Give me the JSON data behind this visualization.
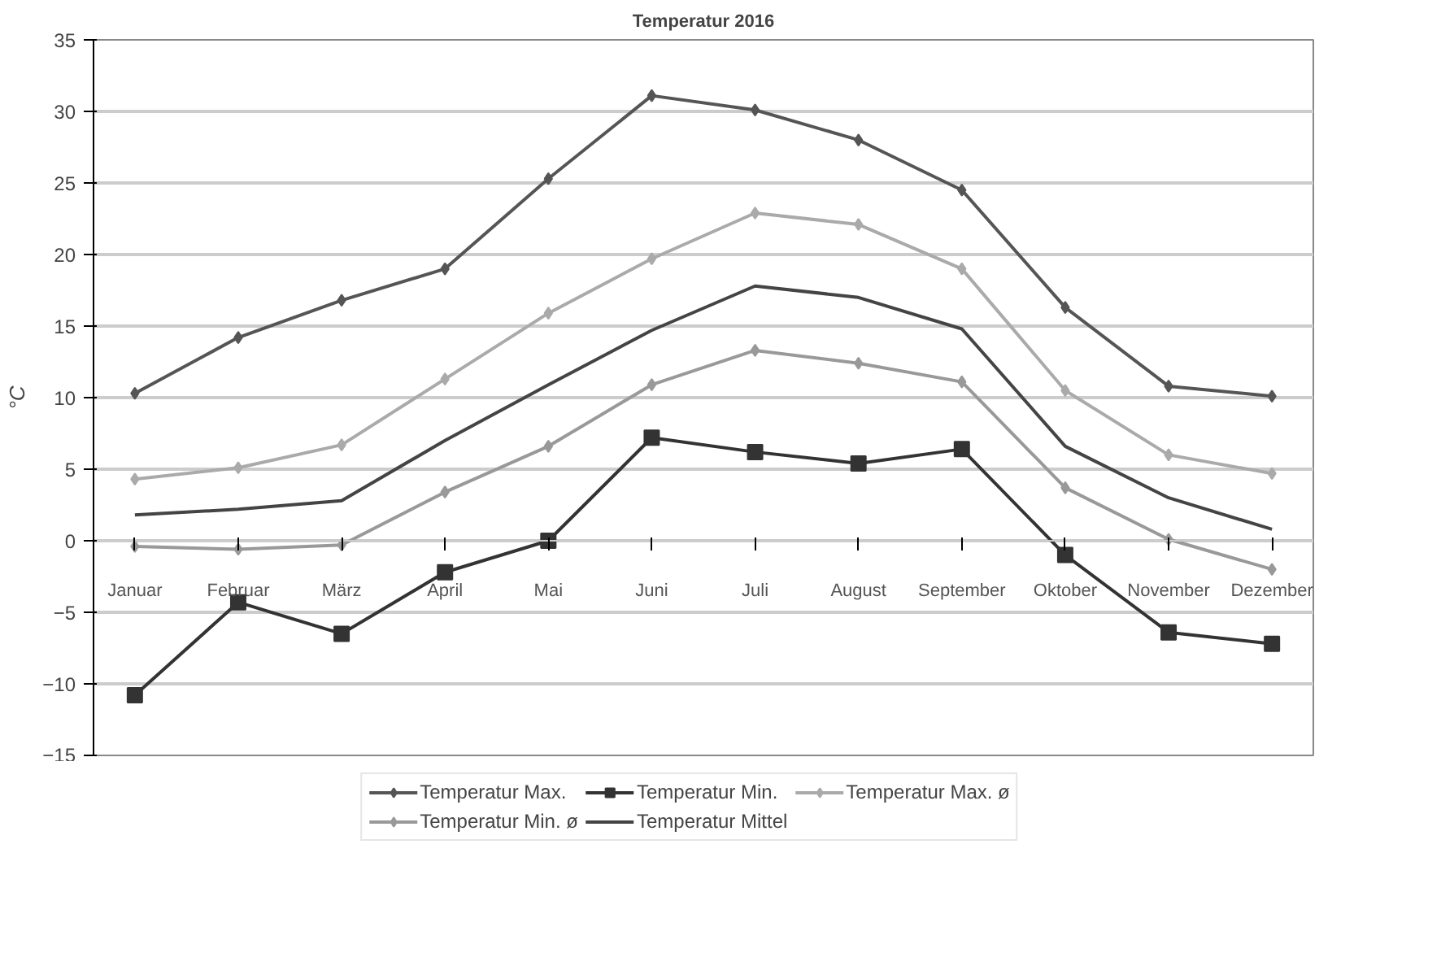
{
  "chart_data": {
    "type": "line",
    "title": "Temperatur 2016",
    "ylabel": "°C",
    "categories": [
      "Januar",
      "Februar",
      "März",
      "April",
      "Mai",
      "Juni",
      "Juli",
      "August",
      "September",
      "Oktober",
      "November",
      "Dezember"
    ],
    "ylim": [
      -15,
      35
    ],
    "yticks": [
      -15,
      -10,
      -5,
      0,
      5,
      10,
      15,
      20,
      25,
      30,
      35
    ],
    "grid": "y",
    "legend": "bottom",
    "series": [
      {
        "name": "Temperatur Max.",
        "color": "#555555",
        "marker": "diamond",
        "values": [
          10.3,
          14.2,
          16.8,
          19.0,
          25.3,
          31.1,
          30.1,
          28.0,
          24.5,
          16.3,
          10.8,
          10.1
        ]
      },
      {
        "name": "Temperatur Min.",
        "color": "#333333",
        "marker": "square",
        "values": [
          -10.8,
          -4.3,
          -6.5,
          -2.2,
          0.0,
          7.2,
          6.2,
          5.4,
          6.4,
          -1.0,
          -6.4,
          -7.2
        ]
      },
      {
        "name": "Temperatur Max. ø",
        "color": "#aaaaaa",
        "marker": "diamond",
        "values": [
          4.3,
          5.1,
          6.7,
          11.3,
          15.9,
          19.7,
          22.9,
          22.1,
          19.0,
          10.5,
          6.0,
          4.7
        ]
      },
      {
        "name": "Temperatur Min. ø",
        "color": "#999999",
        "marker": "diamond",
        "values": [
          -0.4,
          -0.6,
          -0.3,
          3.4,
          6.6,
          10.9,
          13.3,
          12.4,
          11.1,
          3.7,
          0.1,
          -2.0
        ]
      },
      {
        "name": "Temperatur Mittel",
        "color": "#444444",
        "marker": "none",
        "values": [
          1.8,
          2.2,
          2.8,
          7.0,
          10.9,
          14.7,
          17.8,
          17.0,
          14.8,
          6.6,
          3.0,
          0.8
        ]
      }
    ]
  }
}
